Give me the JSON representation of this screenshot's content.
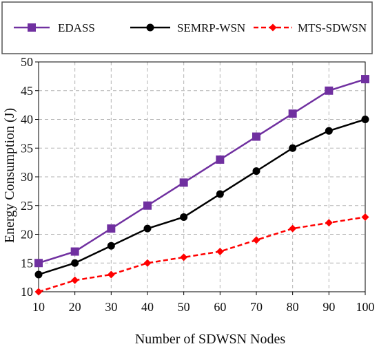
{
  "chart_data": {
    "type": "line",
    "title": "",
    "xlabel": "Number of SDWSN Nodes",
    "ylabel": "Energy Consumption (J)",
    "x": [
      10,
      20,
      30,
      40,
      50,
      60,
      70,
      80,
      90,
      100
    ],
    "xlim": [
      10,
      100
    ],
    "ylim": [
      10,
      50
    ],
    "x_ticks": [
      10,
      20,
      30,
      40,
      50,
      60,
      70,
      80,
      90,
      100
    ],
    "y_ticks": [
      10,
      15,
      20,
      25,
      30,
      35,
      40,
      45,
      50
    ],
    "grid": true,
    "legend_position": "top",
    "series": [
      {
        "name": "EDASS",
        "color": "#7030A0",
        "marker": "square",
        "line_style": "solid",
        "values": [
          15,
          17,
          21,
          25,
          29,
          33,
          37,
          41,
          45,
          47
        ]
      },
      {
        "name": "SEMRP-WSN",
        "color": "#000000",
        "marker": "circle",
        "line_style": "solid",
        "values": [
          13,
          15,
          18,
          21,
          23,
          27,
          31,
          35,
          38,
          40
        ]
      },
      {
        "name": "MTS-SDWSN",
        "color": "#FF0000",
        "marker": "diamond",
        "line_style": "dashed",
        "values": [
          10,
          12,
          13,
          15,
          16,
          17,
          19,
          21,
          22,
          23
        ]
      }
    ]
  }
}
